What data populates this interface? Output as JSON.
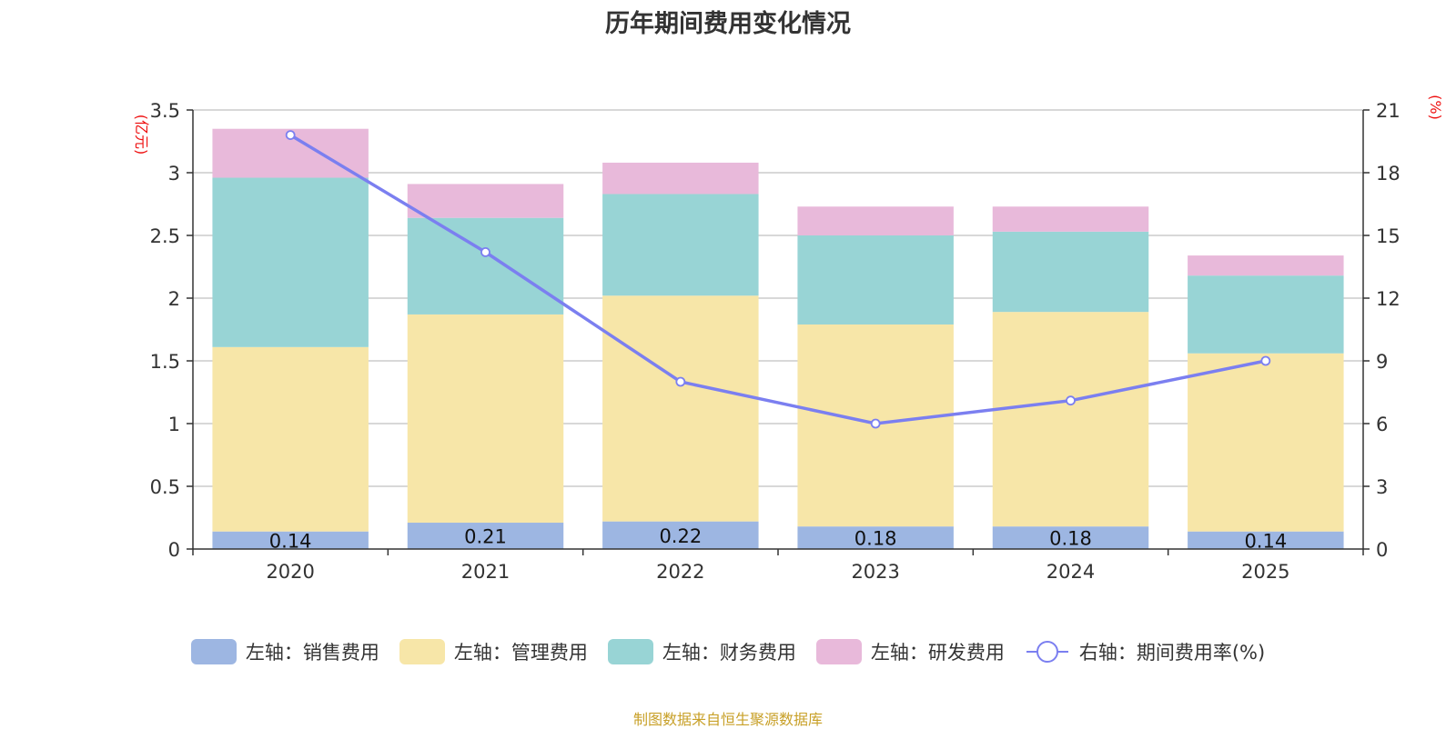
{
  "title": "历年期间费用变化情况",
  "source": "制图数据来自恒生聚源数据库",
  "chart_data": {
    "type": "bar",
    "stacked": true,
    "title": "历年期间费用变化情况",
    "categories": [
      "2020",
      "2021",
      "2022",
      "2023",
      "2024",
      "2025"
    ],
    "left_axis": {
      "unit": "(亿元)",
      "ylim": [
        0,
        3.5
      ],
      "ticks": [
        "0",
        "0.5",
        "1",
        "1.5",
        "2",
        "2.5",
        "3",
        "3.5"
      ],
      "tick_values": [
        0,
        0.5,
        1,
        1.5,
        2,
        2.5,
        3,
        3.5
      ]
    },
    "right_axis": {
      "unit": "(%)",
      "ylim": [
        0,
        21
      ],
      "ticks": [
        "0",
        "3",
        "6",
        "9",
        "12",
        "15",
        "18",
        "21"
      ],
      "tick_values": [
        0,
        3,
        6,
        9,
        12,
        15,
        18,
        21
      ]
    },
    "series": [
      {
        "name": "左轴：销售费用",
        "axis": "left",
        "kind": "bar",
        "color": "#9db6e2",
        "values": [
          0.14,
          0.21,
          0.22,
          0.18,
          0.18,
          0.14
        ],
        "labels": [
          "0.14",
          "0.21",
          "0.22",
          "0.18",
          "0.18",
          "0.14"
        ]
      },
      {
        "name": "左轴：管理费用",
        "axis": "left",
        "kind": "bar",
        "color": "#f7e6a8",
        "values": [
          1.47,
          1.66,
          1.8,
          1.61,
          1.71,
          1.42
        ]
      },
      {
        "name": "左轴：财务费用",
        "axis": "left",
        "kind": "bar",
        "color": "#98d4d5",
        "values": [
          1.35,
          0.77,
          0.81,
          0.71,
          0.64,
          0.62
        ]
      },
      {
        "name": "左轴：研发费用",
        "axis": "left",
        "kind": "bar",
        "color": "#e8b9da",
        "values": [
          0.39,
          0.27,
          0.25,
          0.23,
          0.2,
          0.16
        ]
      },
      {
        "name": "右轴：期间费用率(%)",
        "axis": "right",
        "kind": "line",
        "color": "#7b7ff0",
        "values": [
          19.8,
          14.2,
          8.0,
          6.0,
          7.1,
          9.0
        ]
      }
    ],
    "legend_position": "bottom",
    "grid": true
  }
}
